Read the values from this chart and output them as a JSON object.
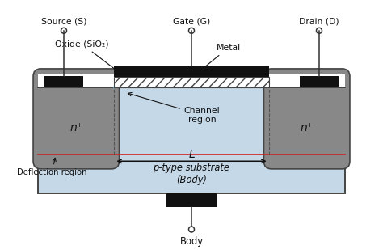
{
  "bg_color": "#ffffff",
  "substrate_color": "#c5d8e8",
  "substrate_border": "#444444",
  "n_region_color": "#888888",
  "n_region_border": "#444444",
  "metal_color": "#111111",
  "red_line_color": "#cc2222",
  "blue_line_color": "#5599bb",
  "text_color": "#111111",
  "labels": {
    "source": "Source (S)",
    "gate": "Gate (G)",
    "drain": "Drain (D)",
    "oxide": "Oxide (SiO₂)",
    "metal": "Metal",
    "channel": "Channel\nregion",
    "n_left": "n⁺",
    "n_right": "n⁺",
    "substrate": "p-type substrate\n(Body)",
    "deflection": "Deflection region",
    "body": "Body",
    "L": "L"
  }
}
